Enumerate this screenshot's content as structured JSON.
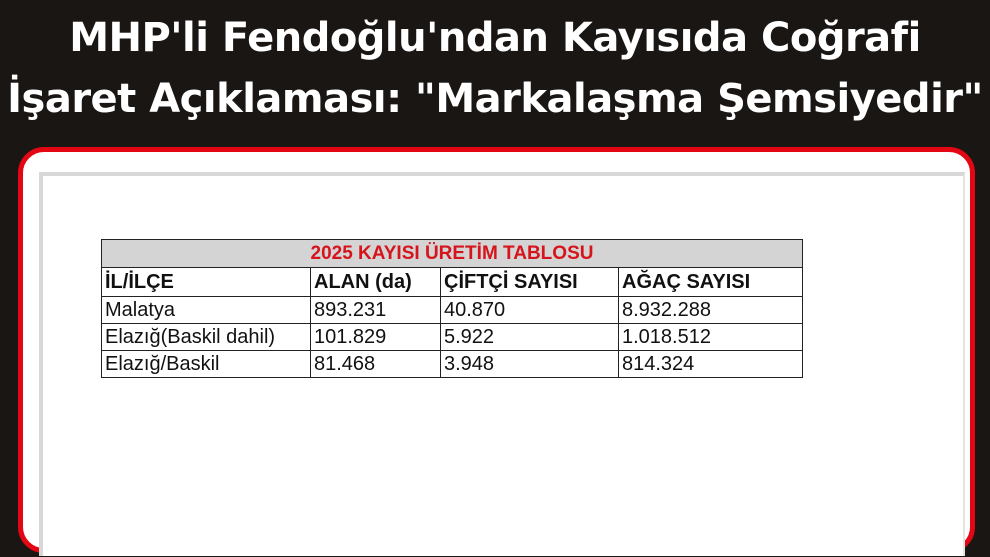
{
  "headline": {
    "line1": "MHP'li Fendoğlu'ndan Kayısıda Coğrafi",
    "line2": "İşaret Açıklaması: \"Markalaşma Şemsiyedir\""
  },
  "colors": {
    "frame": "#e30613",
    "title_text": "#d6141c",
    "background": "#1a1614"
  },
  "table": {
    "title": "2025 KAYISI ÜRETİM TABLOSU",
    "headers": [
      "İL/İLÇE",
      "ALAN (da)",
      "ÇİFTÇİ SAYISI",
      "AĞAÇ SAYISI"
    ],
    "rows": [
      [
        "Malatya",
        "893.231",
        "40.870",
        "8.932.288"
      ],
      [
        "Elazığ(Baskil dahil)",
        "101.829",
        "5.922",
        "1.018.512"
      ],
      [
        "Elazığ/Baskil",
        "81.468",
        "3.948",
        "814.324"
      ]
    ]
  }
}
